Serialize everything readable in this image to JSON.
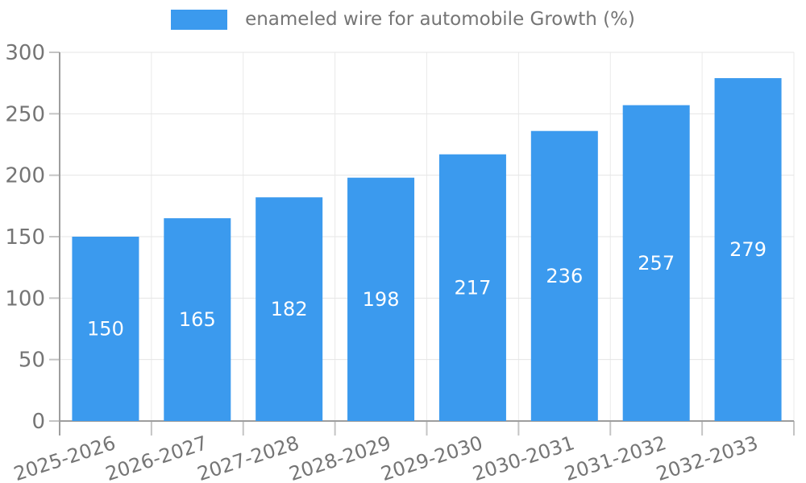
{
  "chart_data": {
    "type": "bar",
    "title": "enameled wire for automobile Growth (%)",
    "categories": [
      "2025-2026",
      "2026-2027",
      "2027-2028",
      "2028-2029",
      "2029-2030",
      "2030-2031",
      "2031-2032",
      "2032-2033"
    ],
    "values": [
      150,
      165,
      182,
      198,
      217,
      236,
      257,
      279
    ],
    "xlabel": "",
    "ylabel": "",
    "ylim": [
      0,
      300
    ],
    "yticks": [
      0,
      50,
      100,
      150,
      200,
      250,
      300
    ],
    "grid": true,
    "legend_position": "top",
    "value_label_position": "inside-center"
  },
  "legend": {
    "swatch": "blue-square",
    "label": "enameled wire for automobile Growth (%)"
  },
  "colors": {
    "bar": "#3b9aee",
    "value_label": "#ffffff",
    "legend_text": "#757575",
    "tick_label": "#757575",
    "grid_horizontal": "#e5e5e5",
    "grid_vertical": "#eaeaea",
    "axis": "#9e9e9e",
    "tick": "#c4c4c4",
    "background": "#ffffff"
  }
}
